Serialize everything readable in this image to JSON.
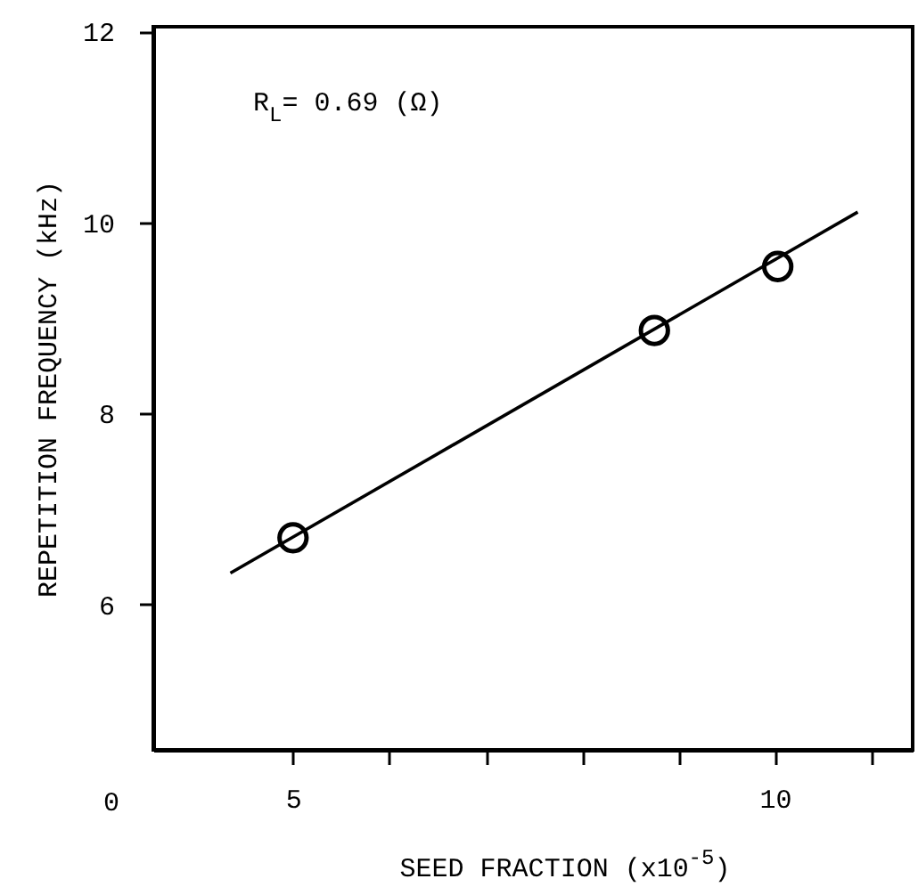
{
  "chart_data": {
    "type": "scatter",
    "xlabel": "SEED FRACTION (x10$^{-5}$)",
    "ylabel": "REPETITION FREQUENCY (kHz)",
    "xlim": [
      3.55,
      11.43
    ],
    "ylim": [
      4.48,
      12.05
    ],
    "xticks": [
      5,
      {
        "value": 6,
        "label": null
      },
      {
        "value": 7,
        "label": null
      },
      {
        "value": 8,
        "label": null
      },
      {
        "value": 9,
        "label": null
      },
      10,
      {
        "value": 11,
        "label": null
      }
    ],
    "yticks": [
      6,
      8,
      10,
      12
    ],
    "grid": false,
    "annotations": [
      "R$_{L}$= 0.69 (Ω)",
      "0"
    ],
    "series": [
      {
        "color": "#000000",
        "marker": "circle",
        "x": [
          5,
          8.75,
          10.03
        ],
        "values": [
          6.7,
          8.87,
          9.54
        ]
      },
      {
        "type": "line",
        "marker": "none",
        "line_style": "solid",
        "color": "#000000",
        "x": [
          4.35,
          10.86
        ],
        "values": [
          6.33,
          10.11
        ]
      }
    ]
  }
}
